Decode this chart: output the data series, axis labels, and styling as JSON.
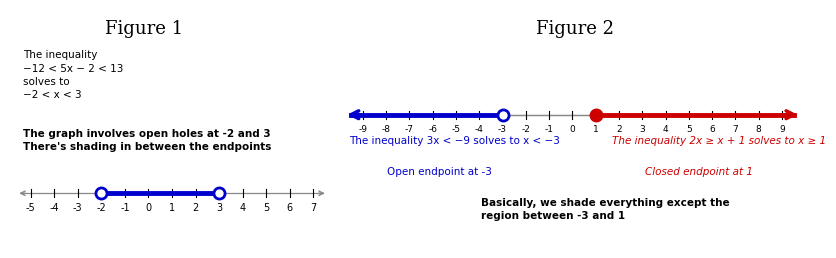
{
  "fig1_title": "Figure 1",
  "fig2_title": "Figure 2",
  "fig1_text1": "The inequality\n−12 < 5x − 2 < 13\nsolves to\n−2 < x < 3",
  "fig1_text2": "The graph involves open holes at -2 and 3\nThere's shading in between the endpoints",
  "fig1_ticks": [
    -5,
    -4,
    -3,
    -2,
    -1,
    0,
    1,
    2,
    3,
    4,
    5,
    6,
    7
  ],
  "fig1_open_pts": [
    -2,
    3
  ],
  "fig1_line_color": "#0000CD",
  "fig2_ticks": [
    -9,
    -8,
    -7,
    -6,
    -5,
    -4,
    -3,
    -2,
    -1,
    0,
    1,
    2,
    3,
    4,
    5,
    6,
    7,
    8,
    9
  ],
  "fig2_open_pt": -3,
  "fig2_closed_pt": 1,
  "fig2_blue_color": "#0000CD",
  "fig2_red_color": "#CC0000",
  "fig2_text_blue1": "The inequality 3x < −9 solves to x < −3",
  "fig2_text_blue2": "Open endpoint at -3",
  "fig2_text_red1": "The inequality 2x ≥ x + 1 solves to x ≥ 1",
  "fig2_text_red2": "Closed endpoint at 1",
  "fig2_text_black": "Basically, we shade everything except the\nregion between -3 and 1",
  "divider_color": "#BBBBBB",
  "bg_color": "#FFFFFF",
  "axis_line_color": "#888888"
}
